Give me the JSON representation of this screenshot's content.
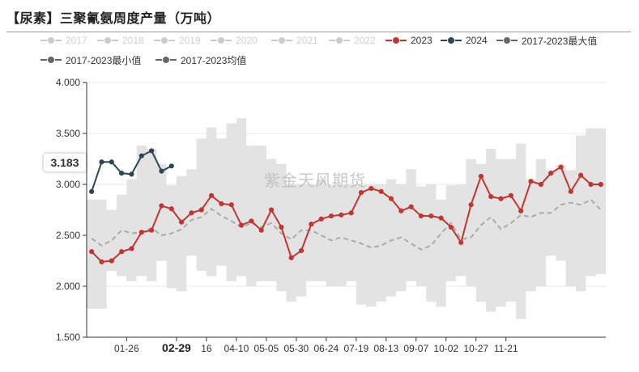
{
  "title": "【尿素】三聚氰氨周度产量（万吨）",
  "watermark": "紫金天风期货",
  "tooltip_value": "3.183",
  "legend": [
    {
      "label": "2017",
      "color": "#cccccc",
      "active": false
    },
    {
      "label": "2018",
      "color": "#cccccc",
      "active": false
    },
    {
      "label": "2019",
      "color": "#cccccc",
      "active": false
    },
    {
      "label": "2020",
      "color": "#cccccc",
      "active": false
    },
    {
      "label": "2021",
      "color": "#cccccc",
      "active": false
    },
    {
      "label": "2022",
      "color": "#cccccc",
      "active": false
    },
    {
      "label": "2023",
      "color": "#c23531",
      "active": true
    },
    {
      "label": "2024",
      "color": "#2f4554",
      "active": true
    },
    {
      "label": "2017-2023最大值",
      "color": "#666666",
      "active": true
    },
    {
      "label": "2017-2023最小值",
      "color": "#666666",
      "active": true
    },
    {
      "label": "2017-2023均值",
      "color": "#666666",
      "active": true
    }
  ],
  "chart_data": {
    "type": "line",
    "title": "【尿素】三聚氰氨周度产量（万吨）",
    "ylim": [
      1.5,
      4.0
    ],
    "yticks": [
      "1.500",
      "2.000",
      "2.500",
      "3.000",
      "3.500",
      "4.000"
    ],
    "x_tick_labels": [
      "01-26",
      "02-29",
      "16",
      "04-10",
      "05-05",
      "05-30",
      "06-24",
      "07-19",
      "08-13",
      "09-07",
      "10-02",
      "10-27",
      "11-21"
    ],
    "x_tick_index": [
      4,
      9,
      12,
      15,
      18,
      21,
      24,
      27,
      30,
      33,
      36,
      39,
      42
    ],
    "highlighted_tick": "02-29",
    "grid": true,
    "legend_position": "top-left",
    "num_weeks": 52,
    "series": [
      {
        "name": "2023",
        "color": "#c23531",
        "values": [
          2.34,
          2.24,
          2.25,
          2.34,
          2.37,
          2.53,
          2.55,
          2.79,
          2.76,
          2.63,
          2.72,
          2.75,
          2.89,
          2.81,
          2.8,
          2.6,
          2.64,
          2.55,
          2.75,
          2.58,
          2.28,
          2.35,
          2.61,
          2.66,
          2.69,
          2.7,
          2.72,
          2.92,
          2.96,
          2.93,
          2.86,
          2.74,
          2.78,
          2.69,
          2.69,
          2.67,
          2.58,
          2.43,
          2.8,
          3.08,
          2.88,
          2.86,
          2.89,
          2.74,
          3.03,
          3.0,
          3.11,
          3.17,
          2.93,
          3.09,
          3.0,
          3.0
        ]
      },
      {
        "name": "2024",
        "color": "#2f4554",
        "values": [
          2.93,
          3.22,
          3.22,
          3.11,
          3.1,
          3.28,
          3.33,
          3.13,
          3.18
        ]
      },
      {
        "name": "2017-2023最大值",
        "color": "#e6e6e6",
        "values": [
          2.85,
          2.85,
          2.75,
          2.9,
          3.05,
          3.38,
          3.35,
          3.2,
          2.99,
          3.08,
          3.15,
          3.45,
          3.56,
          3.45,
          3.6,
          3.65,
          3.38,
          3.38,
          3.25,
          3.2,
          3.0,
          3.0,
          3.0,
          3.05,
          2.99,
          3.0,
          3.0,
          3.0,
          3.0,
          3.0,
          3.05,
          3.0,
          3.15,
          2.98,
          3.0,
          2.85,
          2.99,
          3.0,
          3.25,
          3.2,
          3.35,
          3.25,
          3.25,
          3.4,
          3.05,
          3.25,
          3.14,
          3.19,
          3.14,
          3.48,
          3.55,
          3.55
        ]
      },
      {
        "name": "2017-2023最小值",
        "color": "#e6e6e6",
        "values": [
          1.78,
          1.78,
          2.15,
          2.1,
          2.05,
          2.1,
          2.05,
          2.25,
          1.98,
          1.95,
          2.3,
          2.15,
          2.1,
          2.2,
          2.05,
          2.1,
          2.0,
          2.05,
          2.05,
          1.95,
          1.85,
          1.9,
          2.05,
          2.05,
          2.0,
          2.0,
          2.05,
          1.82,
          1.8,
          1.85,
          1.9,
          1.95,
          2.05,
          2.0,
          1.85,
          1.8,
          2.05,
          2.1,
          2.0,
          1.85,
          1.75,
          1.8,
          1.85,
          1.68,
          1.95,
          2.0,
          2.3,
          2.25,
          2.0,
          1.95,
          2.1,
          2.12
        ]
      },
      {
        "name": "2017-2023均值",
        "color": "#aaaaaa",
        "values": [
          2.47,
          2.4,
          2.45,
          2.55,
          2.52,
          2.53,
          2.57,
          2.5,
          2.52,
          2.56,
          2.65,
          2.68,
          2.76,
          2.69,
          2.64,
          2.58,
          2.62,
          2.58,
          2.62,
          2.52,
          2.46,
          2.55,
          2.55,
          2.5,
          2.45,
          2.48,
          2.45,
          2.42,
          2.38,
          2.4,
          2.45,
          2.48,
          2.42,
          2.36,
          2.4,
          2.52,
          2.62,
          2.46,
          2.48,
          2.6,
          2.68,
          2.56,
          2.62,
          2.7,
          2.68,
          2.72,
          2.72,
          2.8,
          2.82,
          2.8,
          2.85,
          2.75
        ]
      }
    ]
  }
}
